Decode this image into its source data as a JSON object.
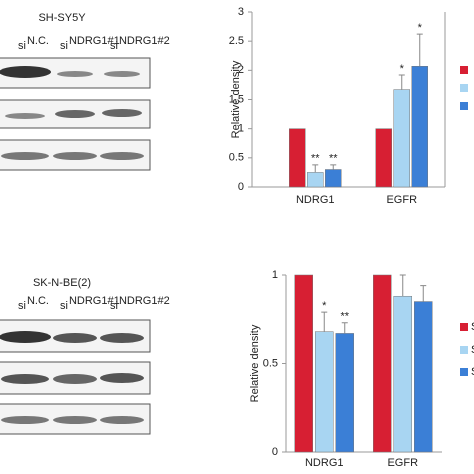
{
  "blots": [
    {
      "title": "SH-SY5Y",
      "lanes": [
        {
          "prefix": "si",
          "sup": "N.C."
        },
        {
          "prefix": "si",
          "sup": "NDRG1#1"
        },
        {
          "prefix": "si",
          "sup": "NDRG1#2"
        }
      ]
    },
    {
      "title": "SK-N-BE(2)",
      "lanes": [
        {
          "prefix": "si",
          "sup": "N.C."
        },
        {
          "prefix": "si",
          "sup": "NDRG1#1"
        },
        {
          "prefix": "si",
          "sup": "NDRG1#2"
        }
      ]
    }
  ],
  "chart_data": [
    {
      "type": "bar",
      "y_label": "Relative density",
      "categories": [
        "NDRG1",
        "EGFR"
      ],
      "series": [
        {
          "color": "#d71f33",
          "values": [
            1,
            1
          ],
          "errors": [
            0,
            0
          ],
          "significance": [
            null,
            null
          ]
        },
        {
          "color": "#a8d5f2",
          "values": [
            0.25,
            1.67
          ],
          "errors": [
            0.13,
            0.25
          ],
          "significance": [
            "**",
            "*"
          ]
        },
        {
          "color": "#3b7fd6",
          "values": [
            0.3,
            2.07
          ],
          "errors": [
            0.08,
            0.55
          ],
          "significance": [
            "**",
            "*"
          ]
        }
      ],
      "ylim": [
        0,
        3
      ],
      "yticks": [
        0,
        0.5,
        1,
        1.5,
        2,
        2.5,
        3
      ]
    },
    {
      "type": "bar",
      "y_label": "Relative density",
      "categories": [
        "NDRG1",
        "EGFR"
      ],
      "series": [
        {
          "name": "S",
          "color": "#d71f33",
          "values": [
            1,
            1
          ],
          "errors": [
            0,
            0
          ],
          "significance": [
            null,
            null
          ]
        },
        {
          "name": "S",
          "color": "#a8d5f2",
          "values": [
            0.68,
            0.88
          ],
          "errors": [
            0.11,
            0.12
          ],
          "significance": [
            "*",
            null
          ]
        },
        {
          "name": "S",
          "color": "#3b7fd6",
          "values": [
            0.67,
            0.85
          ],
          "errors": [
            0.06,
            0.09
          ],
          "significance": [
            "**",
            null
          ]
        }
      ],
      "ylim": [
        0,
        1
      ],
      "yticks": [
        0,
        0.5,
        1
      ]
    }
  ]
}
